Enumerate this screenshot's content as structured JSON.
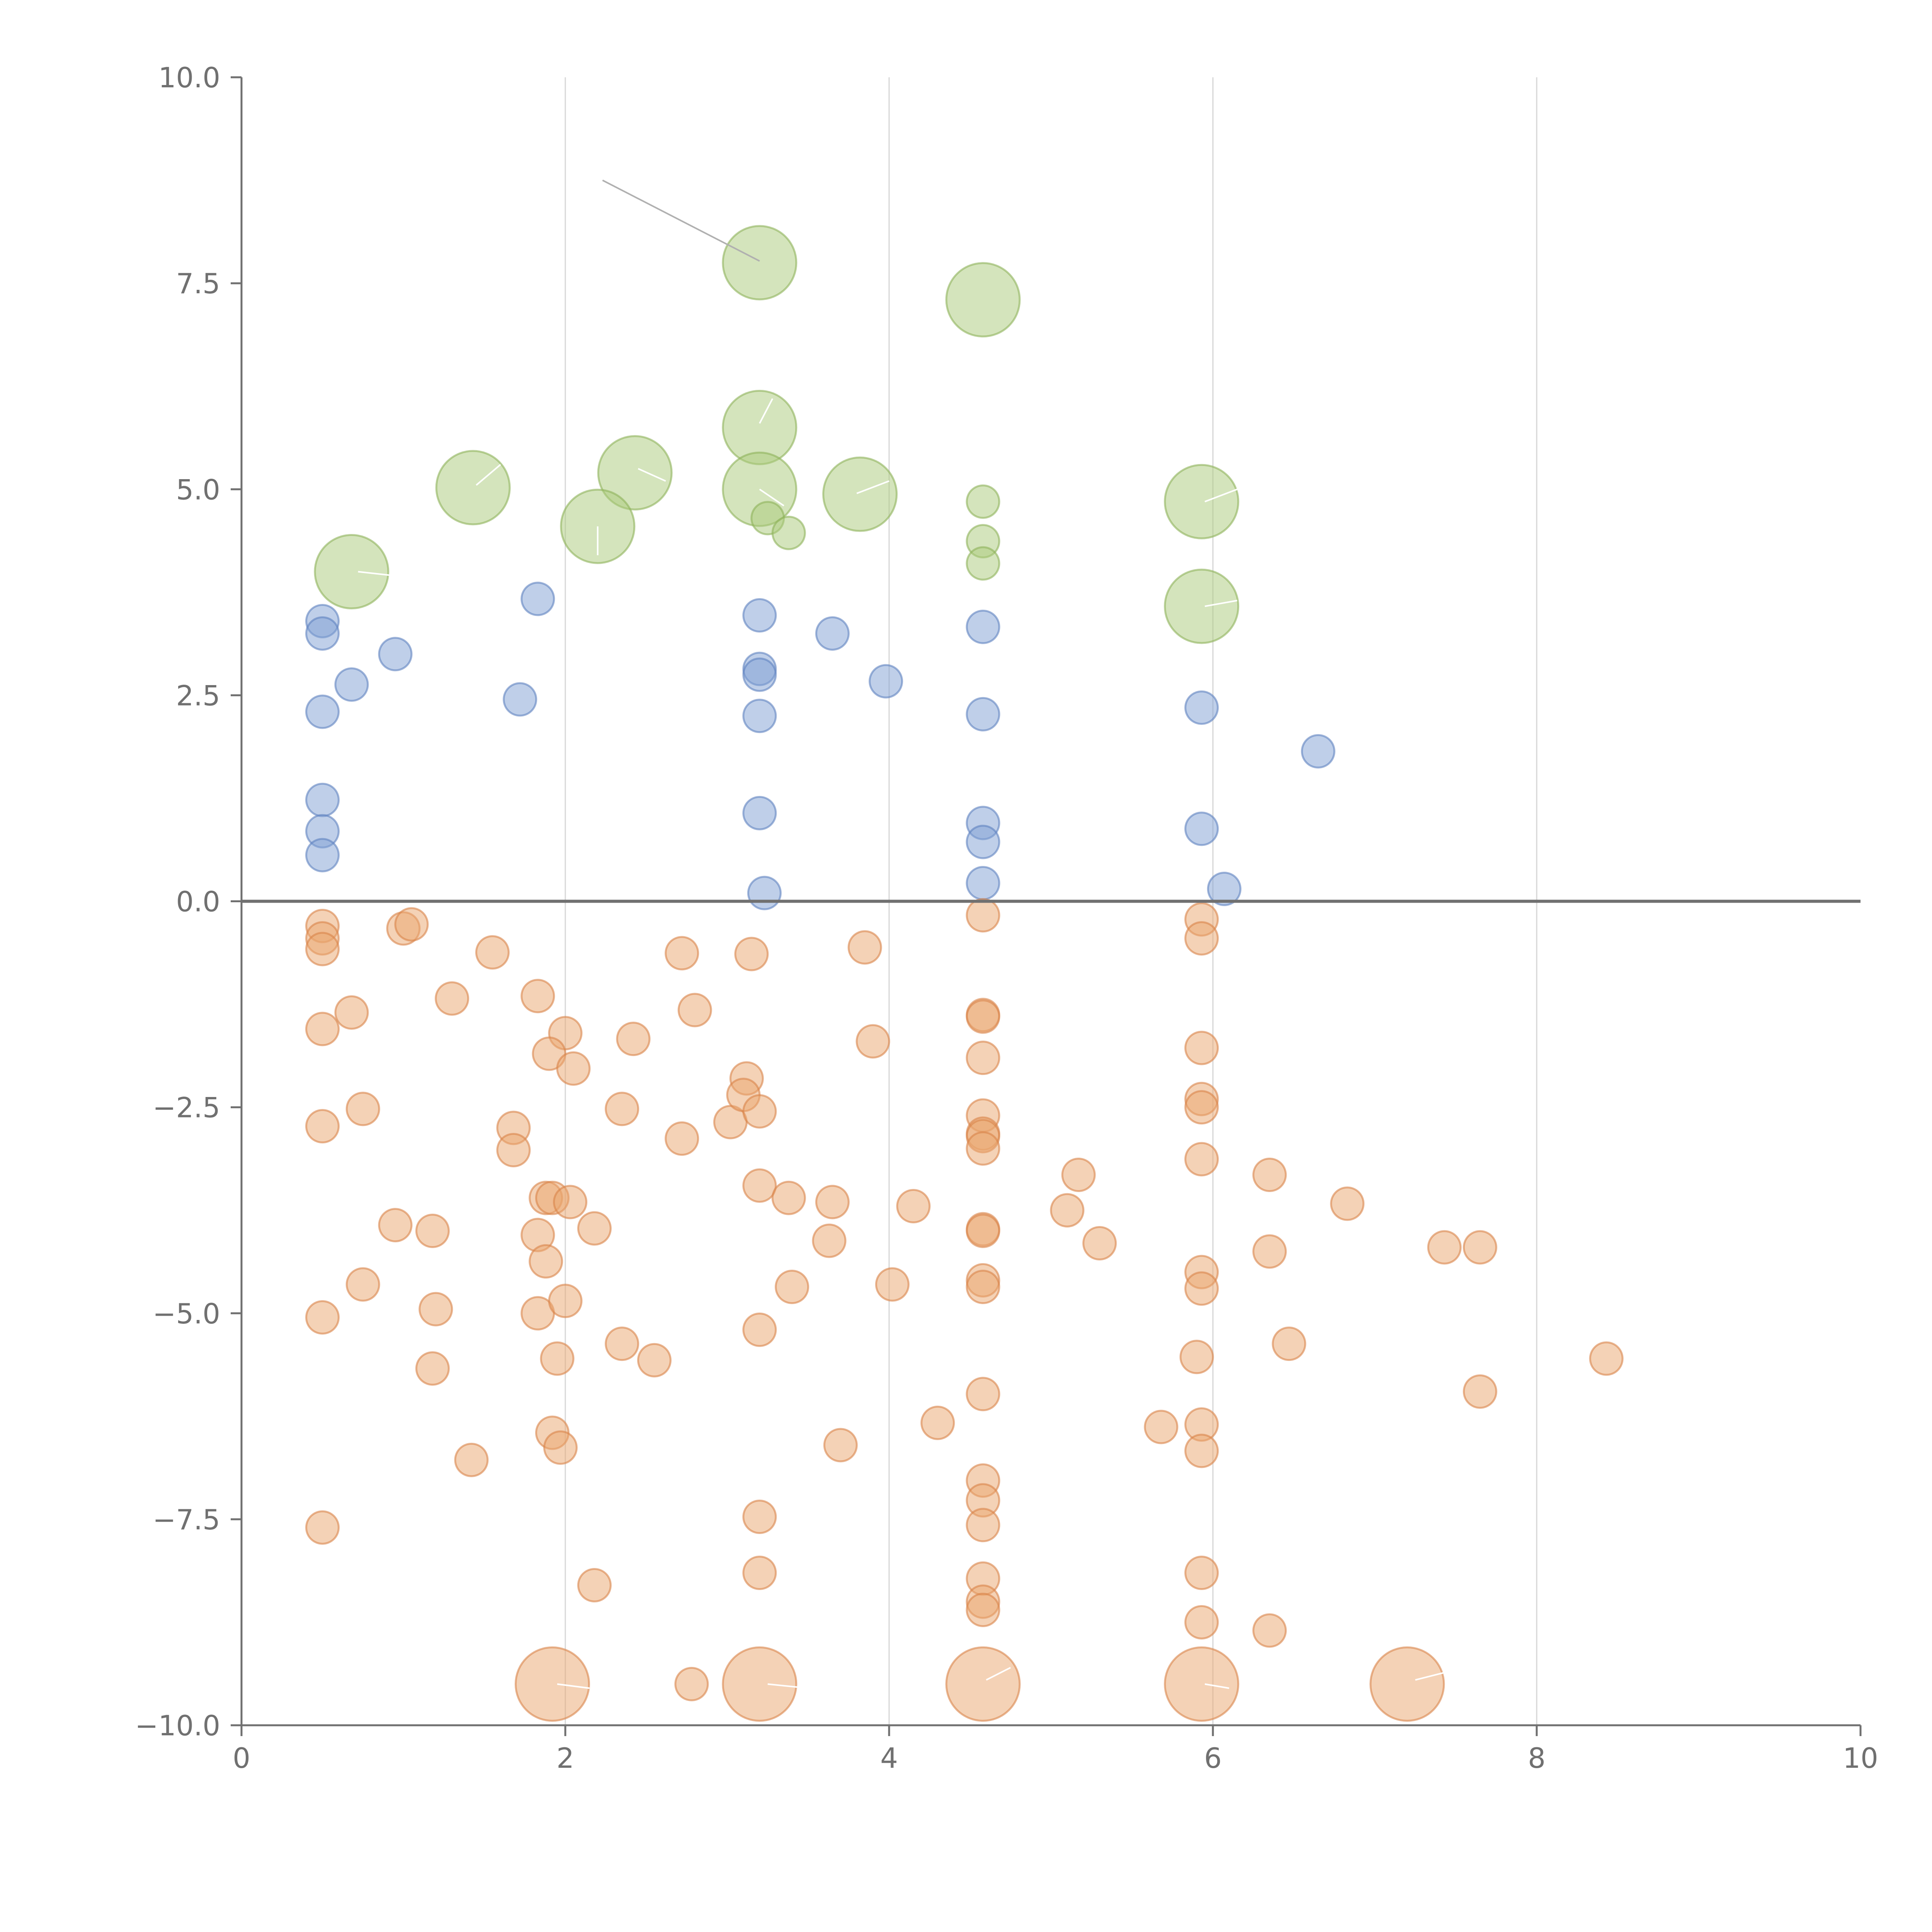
{
  "chart_data": {
    "type": "scatter",
    "title": "",
    "xlabel": "",
    "ylabel": "",
    "xlim": [
      0,
      10
    ],
    "ylim": [
      -10,
      10
    ],
    "xticks": [
      "0",
      "2",
      "4",
      "6",
      "8",
      "10"
    ],
    "yticks": [
      "−10.0",
      "−7.5",
      "−5.0",
      "−2.5",
      "0.0",
      "2.5",
      "5.0",
      "7.5",
      "10.0"
    ],
    "grid": "vertical",
    "colors": {
      "green": "#a9c97a",
      "green_edge": "#8db35a",
      "blue": "#7f9fd4",
      "blue_edge": "#5f82c0",
      "orange": "#eaa56e",
      "orange_edge": "#d9844a",
      "leader_dark": "#b0b0b0",
      "leader_light": "#ffffff"
    },
    "series": [
      {
        "name": "green",
        "points": [
          [
            3.2,
            7.75,
            2
          ],
          [
            4.58,
            7.3,
            2
          ],
          [
            3.2,
            5.75,
            2
          ],
          [
            2.43,
            5.2,
            2
          ],
          [
            1.43,
            5.02,
            2
          ],
          [
            3.2,
            5.0,
            2
          ],
          [
            3.82,
            4.94,
            2
          ],
          [
            5.93,
            4.85,
            2
          ],
          [
            2.2,
            4.55,
            2
          ],
          [
            0.68,
            4.0,
            2
          ],
          [
            5.93,
            3.58,
            2
          ],
          [
            4.58,
            4.85,
            1
          ],
          [
            4.58,
            4.37,
            1
          ],
          [
            4.58,
            4.1,
            1
          ],
          [
            3.25,
            4.65,
            1
          ],
          [
            3.38,
            4.47,
            1
          ]
        ]
      },
      {
        "name": "blue",
        "points": [
          [
            0.5,
            3.4,
            1
          ],
          [
            0.5,
            3.25,
            1
          ],
          [
            0.5,
            2.3,
            1
          ],
          [
            0.68,
            2.63,
            1
          ],
          [
            0.95,
            3.0,
            1
          ],
          [
            1.72,
            2.45,
            1
          ],
          [
            1.83,
            3.67,
            1
          ],
          [
            3.2,
            3.47,
            1
          ],
          [
            3.2,
            2.82,
            1
          ],
          [
            3.2,
            2.75,
            1
          ],
          [
            3.2,
            2.25,
            1
          ],
          [
            3.2,
            1.07,
            1
          ],
          [
            3.23,
            0.1,
            1
          ],
          [
            3.65,
            3.25,
            1
          ],
          [
            3.98,
            2.67,
            1
          ],
          [
            4.58,
            3.33,
            1
          ],
          [
            4.58,
            2.27,
            1
          ],
          [
            4.58,
            0.95,
            1
          ],
          [
            4.58,
            0.72,
            1
          ],
          [
            4.58,
            0.22,
            1
          ],
          [
            5.93,
            2.35,
            1
          ],
          [
            5.93,
            0.88,
            1
          ],
          [
            6.07,
            0.15,
            1
          ],
          [
            6.65,
            1.82,
            1
          ],
          [
            0.5,
            1.23,
            1
          ],
          [
            0.5,
            0.85,
            1
          ],
          [
            0.5,
            0.56,
            1
          ]
        ]
      },
      {
        "name": "orange",
        "points": [
          [
            0.5,
            -0.3,
            1
          ],
          [
            0.5,
            -0.45,
            1
          ],
          [
            0.5,
            -0.58,
            1
          ],
          [
            1.0,
            -0.33,
            1
          ],
          [
            1.05,
            -0.28,
            1
          ],
          [
            1.55,
            -0.62,
            1
          ],
          [
            2.72,
            -0.63,
            1
          ],
          [
            3.15,
            -0.64,
            1
          ],
          [
            3.85,
            -0.56,
            1
          ],
          [
            4.58,
            -0.17,
            1
          ],
          [
            5.93,
            -0.22,
            1
          ],
          [
            5.93,
            -0.45,
            1
          ],
          [
            0.5,
            -1.55,
            1
          ],
          [
            0.68,
            -1.35,
            1
          ],
          [
            1.3,
            -1.18,
            1
          ],
          [
            1.83,
            -1.15,
            1
          ],
          [
            2.0,
            -1.6,
            1
          ],
          [
            1.9,
            -1.85,
            1
          ],
          [
            2.05,
            -2.03,
            1
          ],
          [
            2.42,
            -1.67,
            1
          ],
          [
            2.8,
            -1.32,
            1
          ],
          [
            3.9,
            -1.7,
            1
          ],
          [
            4.58,
            -1.38,
            1
          ],
          [
            4.58,
            -1.4,
            1
          ],
          [
            4.58,
            -1.9,
            1
          ],
          [
            5.93,
            -1.78,
            1
          ],
          [
            0.5,
            -2.73,
            1
          ],
          [
            0.75,
            -2.52,
            1
          ],
          [
            1.68,
            -2.75,
            1
          ],
          [
            1.68,
            -3.02,
            1
          ],
          [
            2.35,
            -2.52,
            1
          ],
          [
            2.72,
            -2.88,
            1
          ],
          [
            3.02,
            -2.68,
            1
          ],
          [
            3.12,
            -2.15,
            1
          ],
          [
            3.1,
            -2.35,
            1
          ],
          [
            3.2,
            -2.55,
            1
          ],
          [
            4.58,
            -2.6,
            1
          ],
          [
            4.58,
            -2.82,
            1
          ],
          [
            4.58,
            -2.85,
            1
          ],
          [
            4.58,
            -3.0,
            1
          ],
          [
            5.93,
            -2.4,
            1
          ],
          [
            5.93,
            -2.5,
            1
          ],
          [
            5.93,
            -3.13,
            1
          ],
          [
            6.35,
            -3.32,
            1
          ],
          [
            5.17,
            -3.32,
            1
          ],
          [
            0.95,
            -3.93,
            1
          ],
          [
            1.18,
            -4.0,
            1
          ],
          [
            1.83,
            -4.05,
            1
          ],
          [
            1.88,
            -4.37,
            1
          ],
          [
            1.88,
            -3.6,
            1
          ],
          [
            1.92,
            -3.6,
            1
          ],
          [
            2.03,
            -3.65,
            1
          ],
          [
            2.18,
            -3.97,
            1
          ],
          [
            3.2,
            -3.45,
            1
          ],
          [
            3.38,
            -3.6,
            1
          ],
          [
            3.65,
            -3.65,
            1
          ],
          [
            3.63,
            -4.12,
            1
          ],
          [
            4.15,
            -3.7,
            1
          ],
          [
            4.58,
            -3.98,
            1
          ],
          [
            4.58,
            -4.0,
            1
          ],
          [
            5.1,
            -3.75,
            1
          ],
          [
            5.3,
            -4.15,
            1
          ],
          [
            6.35,
            -4.25,
            1
          ],
          [
            6.83,
            -3.67,
            1
          ],
          [
            7.43,
            -4.2,
            1
          ],
          [
            7.65,
            -4.2,
            1
          ],
          [
            0.5,
            -5.05,
            1
          ],
          [
            0.75,
            -4.65,
            1
          ],
          [
            1.2,
            -4.95,
            1
          ],
          [
            1.18,
            -5.67,
            1
          ],
          [
            1.83,
            -5.0,
            1
          ],
          [
            2.0,
            -4.85,
            1
          ],
          [
            1.95,
            -5.55,
            1
          ],
          [
            2.35,
            -5.37,
            1
          ],
          [
            2.55,
            -5.57,
            1
          ],
          [
            3.2,
            -5.2,
            1
          ],
          [
            3.4,
            -4.68,
            1
          ],
          [
            4.02,
            -4.65,
            1
          ],
          [
            4.58,
            -4.6,
            1
          ],
          [
            4.58,
            -4.68,
            1
          ],
          [
            5.93,
            -4.5,
            1
          ],
          [
            5.93,
            -4.7,
            1
          ],
          [
            5.9,
            -5.53,
            1
          ],
          [
            6.47,
            -5.37,
            1
          ],
          [
            8.43,
            -5.55,
            1
          ],
          [
            7.65,
            -5.95,
            1
          ],
          [
            4.58,
            -5.98,
            1
          ],
          [
            1.42,
            -6.78,
            1
          ],
          [
            1.92,
            -6.45,
            1
          ],
          [
            1.97,
            -6.63,
            1
          ],
          [
            3.7,
            -6.6,
            1
          ],
          [
            4.3,
            -6.33,
            1
          ],
          [
            5.68,
            -6.38,
            1
          ],
          [
            5.93,
            -6.35,
            1
          ],
          [
            5.93,
            -6.67,
            1
          ],
          [
            0.5,
            -7.6,
            1
          ],
          [
            3.2,
            -7.47,
            1
          ],
          [
            4.58,
            -7.03,
            1
          ],
          [
            4.58,
            -7.27,
            1
          ],
          [
            4.58,
            -7.57,
            1
          ],
          [
            2.18,
            -8.3,
            1
          ],
          [
            3.2,
            -8.15,
            1
          ],
          [
            4.58,
            -8.22,
            1
          ],
          [
            4.58,
            -8.5,
            1
          ],
          [
            4.58,
            -8.6,
            1
          ],
          [
            5.93,
            -8.15,
            1
          ],
          [
            5.93,
            -8.75,
            1
          ],
          [
            6.35,
            -8.85,
            1
          ],
          [
            2.78,
            -9.5,
            1
          ],
          [
            1.92,
            -9.5,
            2
          ],
          [
            3.2,
            -9.5,
            2
          ],
          [
            4.58,
            -9.5,
            2
          ],
          [
            5.93,
            -9.5,
            2
          ],
          [
            7.2,
            -9.5,
            2
          ]
        ]
      }
    ],
    "leaders": [
      {
        "from": [
          2.23,
          8.75
        ],
        "to": [
          3.2,
          7.77
        ],
        "tone": "dark"
      },
      {
        "from": [
          3.28,
          6.1
        ],
        "to": [
          3.2,
          5.8
        ],
        "tone": "light"
      },
      {
        "from": [
          1.6,
          5.3
        ],
        "to": [
          1.45,
          5.05
        ],
        "tone": "light"
      },
      {
        "from": [
          2.45,
          5.25
        ],
        "to": [
          2.62,
          5.1
        ],
        "tone": "light"
      },
      {
        "from": [
          3.2,
          5.0
        ],
        "to": [
          3.35,
          4.8
        ],
        "tone": "light"
      },
      {
        "from": [
          3.8,
          4.95
        ],
        "to": [
          4.0,
          5.1
        ],
        "tone": "light"
      },
      {
        "from": [
          5.95,
          4.85
        ],
        "to": [
          6.15,
          5.0
        ],
        "tone": "light"
      },
      {
        "from": [
          2.2,
          4.55
        ],
        "to": [
          2.2,
          4.2
        ],
        "tone": "light"
      },
      {
        "from": [
          0.72,
          4.0
        ],
        "to": [
          0.95,
          3.95
        ],
        "tone": "light"
      },
      {
        "from": [
          5.95,
          3.58
        ],
        "to": [
          6.15,
          3.65
        ],
        "tone": "light"
      },
      {
        "from": [
          1.95,
          -9.5
        ],
        "to": [
          2.15,
          -9.55
        ],
        "tone": "light"
      },
      {
        "from": [
          3.25,
          -9.5
        ],
        "to": [
          3.5,
          -9.55
        ],
        "tone": "light"
      },
      {
        "from": [
          4.6,
          -9.45
        ],
        "to": [
          4.75,
          -9.3
        ],
        "tone": "light"
      },
      {
        "from": [
          5.95,
          -9.5
        ],
        "to": [
          6.1,
          -9.55
        ],
        "tone": "light"
      },
      {
        "from": [
          7.25,
          -9.45
        ],
        "to": [
          7.45,
          -9.35
        ],
        "tone": "light"
      }
    ]
  }
}
